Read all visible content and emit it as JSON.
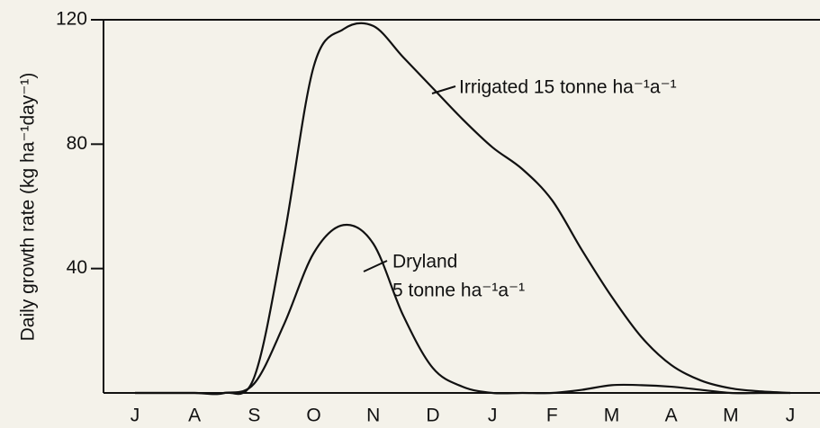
{
  "chart_data": {
    "type": "line",
    "ylabel": "Daily growth rate (kg ha⁻¹day⁻¹)",
    "categories": [
      "J",
      null,
      "A",
      null,
      "S",
      null,
      "O",
      null,
      "N",
      null,
      "D",
      null,
      "J",
      null,
      "F",
      null,
      "M",
      null,
      "A",
      null,
      "M",
      null,
      "J"
    ],
    "series": [
      {
        "name": "Irrigated 15 tonne ha⁻¹a⁻¹",
        "color": "#111111",
        "values": [
          0,
          0,
          0,
          0,
          5,
          50,
          105,
          117,
          118,
          108,
          98,
          88,
          79,
          72,
          62,
          46,
          31,
          18,
          9,
          4,
          1.5,
          0.5,
          0
        ]
      },
      {
        "name": "Dryland|5 tonne ha⁻¹a⁻¹",
        "color": "#111111",
        "values": [
          0,
          0,
          0,
          0,
          3,
          22,
          45,
          54,
          48,
          25,
          8,
          2,
          0,
          0,
          0,
          1,
          2.5,
          2.5,
          2,
          1,
          0,
          0,
          0
        ]
      }
    ],
    "annotations": [
      "Irrigated 15 tonne ha⁻¹a⁻¹",
      "Dryland",
      "5 tonne ha⁻¹a⁻¹"
    ],
    "ylim": [
      0,
      120
    ],
    "yticks": [
      40,
      80,
      120
    ]
  }
}
